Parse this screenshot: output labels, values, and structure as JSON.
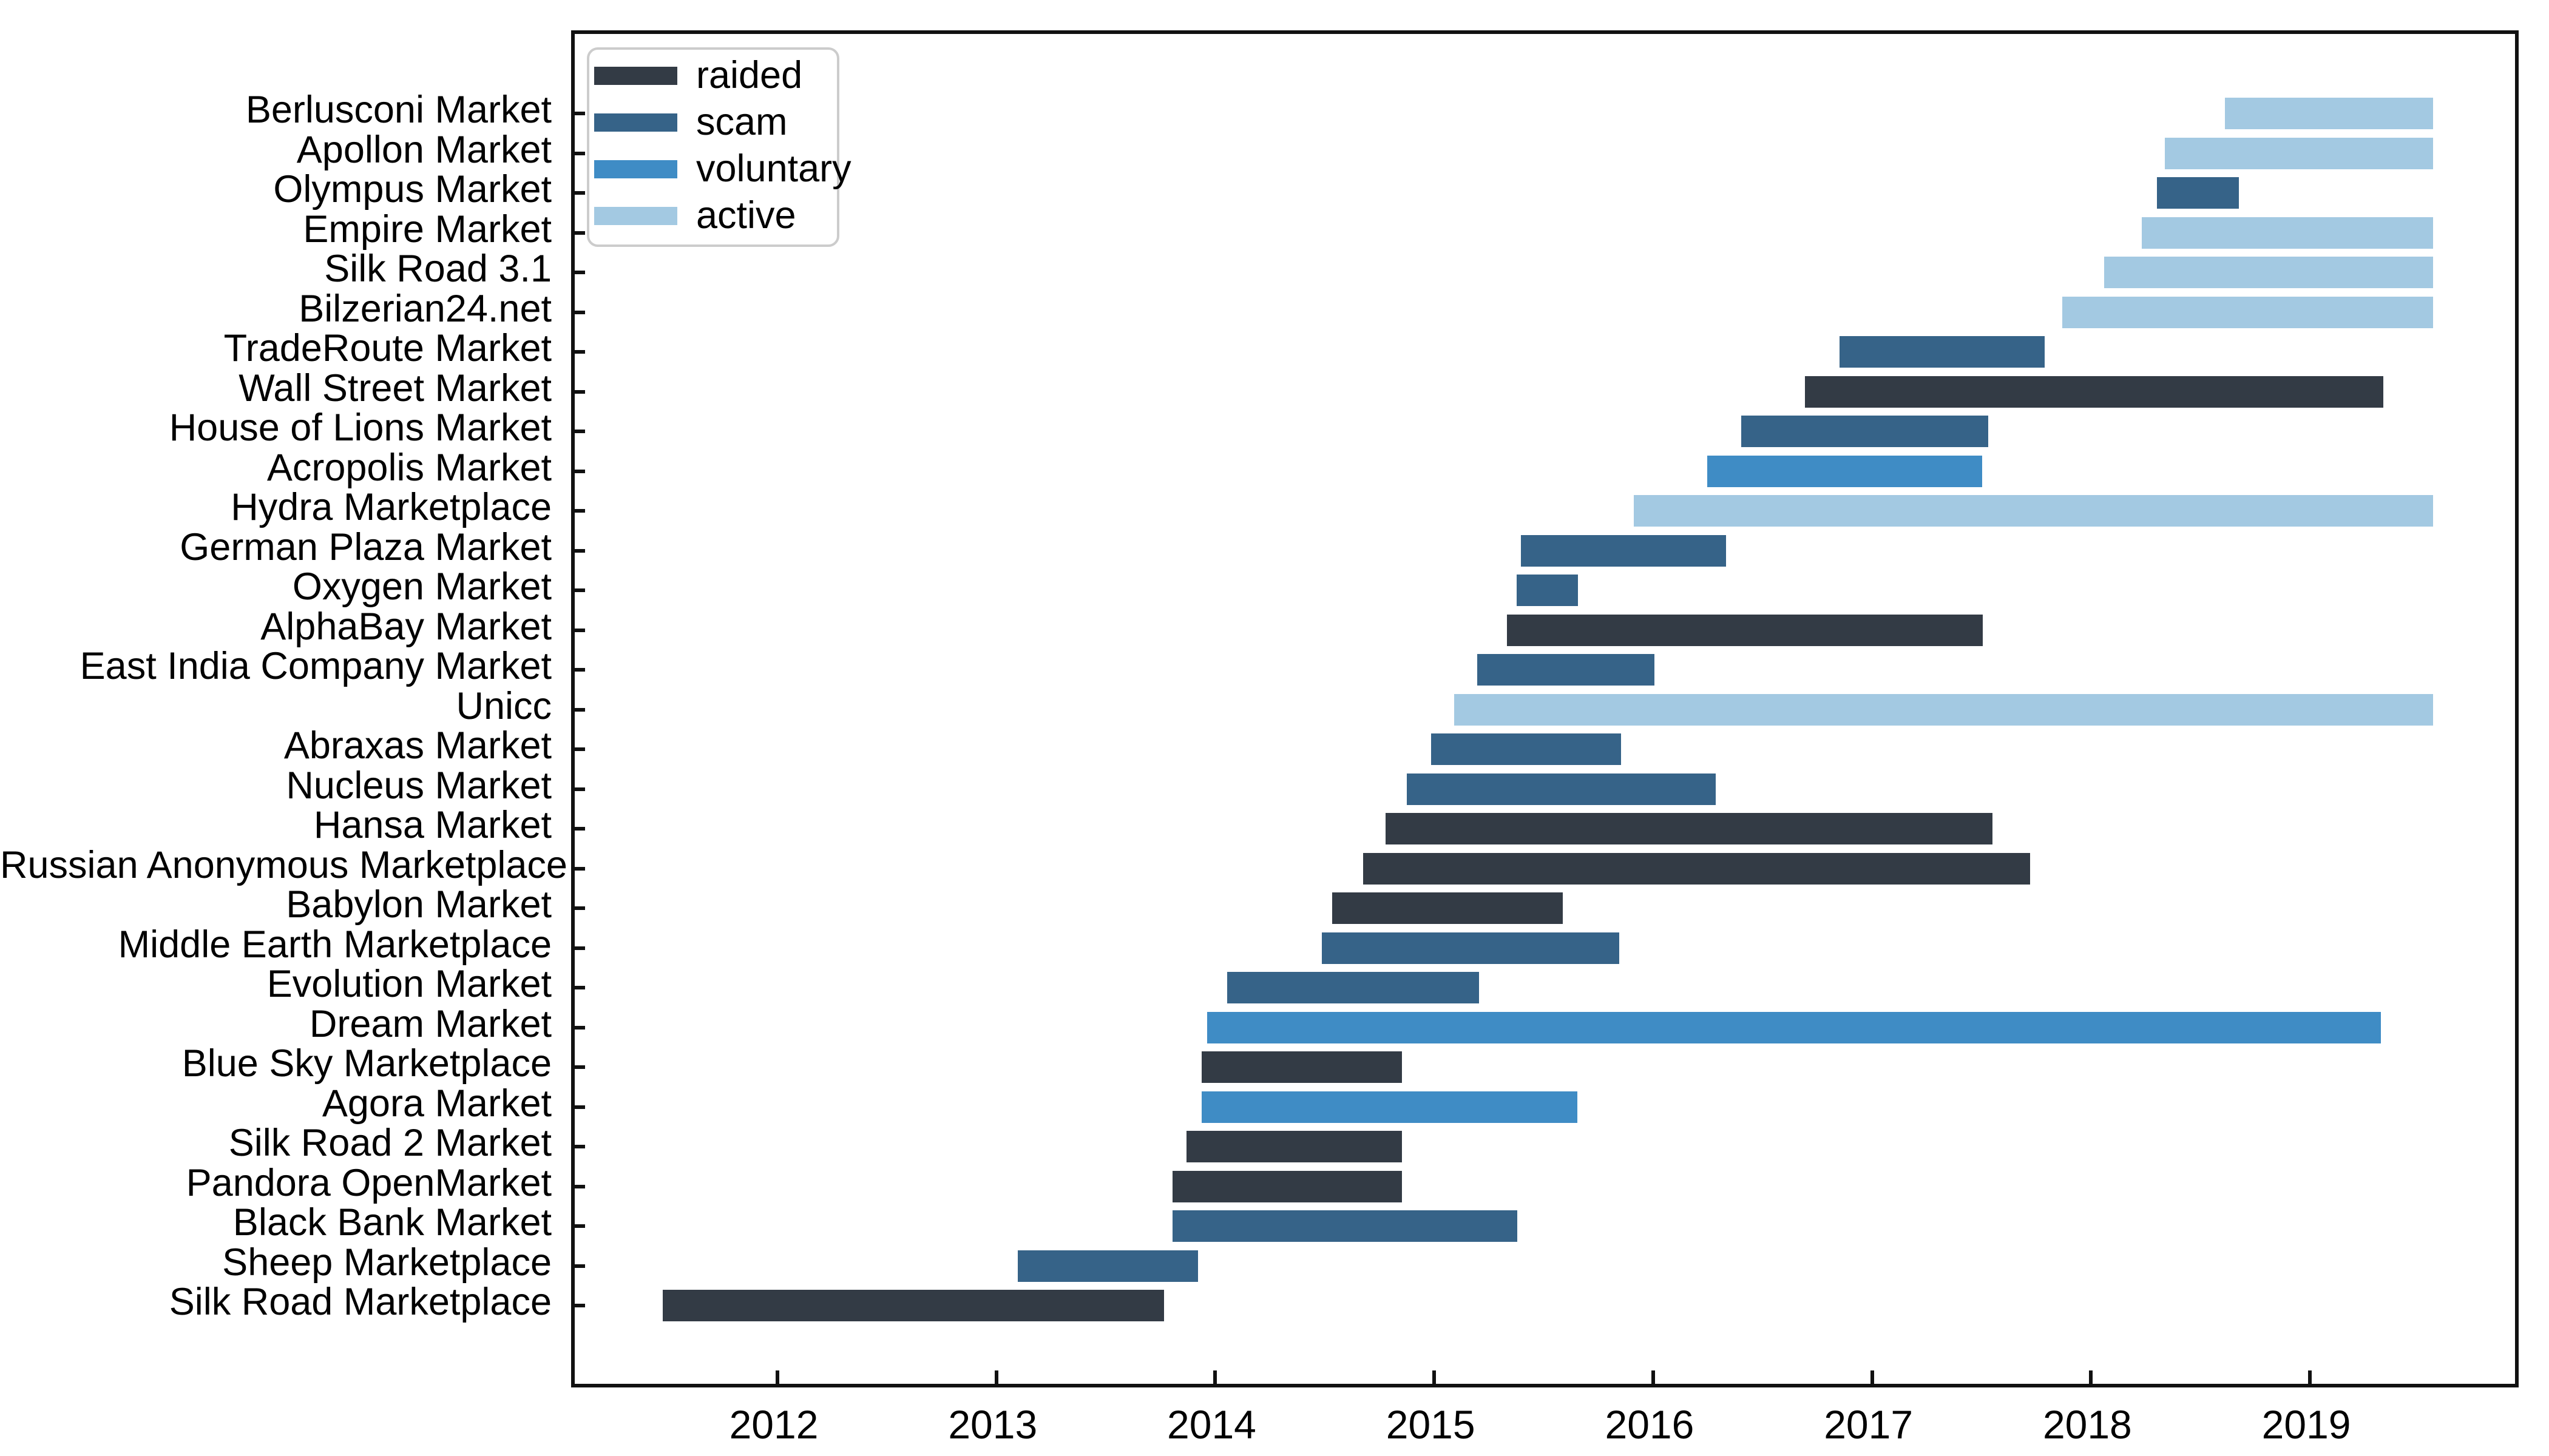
{
  "figure": {
    "background": "#FFFFFF",
    "text_color": "#000000",
    "axis_color": "#111111"
  },
  "chart_data": {
    "type": "gantt",
    "title": "",
    "xlabel": "",
    "ylabel": "",
    "grid": false,
    "x_axis": {
      "range": [
        2011.074,
        2019.97
      ],
      "ticks": [
        "2012",
        "2013",
        "2014",
        "2015",
        "2016",
        "2017",
        "2018",
        "2019"
      ],
      "tick_values": [
        2012,
        2013,
        2014,
        2015,
        2016,
        2017,
        2018,
        2019
      ]
    },
    "legend": {
      "position": "upper-left",
      "entries": [
        {
          "label": "raided",
          "color": "#333B45"
        },
        {
          "label": "scam",
          "color": "#366388"
        },
        {
          "label": "voluntary",
          "color": "#3F8CC5"
        },
        {
          "label": "active",
          "color": "#A3C9E2"
        }
      ]
    },
    "status_colors": {
      "raided": "#333B45",
      "scam": "#366388",
      "voluntary": "#3F8CC5",
      "active": "#A3C9E2"
    },
    "present_year": 2019.562,
    "markets": [
      {
        "name": "Berlusconi Market",
        "status": "active",
        "start": 2018.611,
        "end": 2019.562
      },
      {
        "name": "Apollon Market",
        "status": "active",
        "start": 2018.337,
        "end": 2019.562
      },
      {
        "name": "Olympus Market",
        "status": "scam",
        "start": 2018.301,
        "end": 2018.676
      },
      {
        "name": "Empire Market",
        "status": "active",
        "start": 2018.231,
        "end": 2019.562
      },
      {
        "name": "Silk Road 3.1",
        "status": "active",
        "start": 2018.059,
        "end": 2019.562
      },
      {
        "name": "Bilzerian24.net",
        "status": "active",
        "start": 2017.868,
        "end": 2019.562
      },
      {
        "name": "TradeRoute Market",
        "status": "scam",
        "start": 2016.85,
        "end": 2017.787
      },
      {
        "name": "Wall Street Market",
        "status": "raided",
        "start": 2016.693,
        "end": 2019.334
      },
      {
        "name": "House of Lions Market",
        "status": "scam",
        "start": 2016.403,
        "end": 2017.53
      },
      {
        "name": "Acropolis Market",
        "status": "voluntary",
        "start": 2016.248,
        "end": 2017.502
      },
      {
        "name": "Hydra Marketplace",
        "status": "active",
        "start": 2015.912,
        "end": 2019.562
      },
      {
        "name": "German Plaza Market",
        "status": "scam",
        "start": 2015.397,
        "end": 2016.334
      },
      {
        "name": "Oxygen Market",
        "status": "scam",
        "start": 2015.377,
        "end": 2015.657
      },
      {
        "name": "AlphaBay Market",
        "status": "raided",
        "start": 2015.331,
        "end": 2017.505
      },
      {
        "name": "East India Company Market",
        "status": "scam",
        "start": 2015.197,
        "end": 2016.007
      },
      {
        "name": "Unicc",
        "status": "active",
        "start": 2015.091,
        "end": 2019.562
      },
      {
        "name": "Abraxas Market",
        "status": "scam",
        "start": 2014.986,
        "end": 2015.852
      },
      {
        "name": "Nucleus Market",
        "status": "scam",
        "start": 2014.875,
        "end": 2016.285
      },
      {
        "name": "Hansa Market",
        "status": "raided",
        "start": 2014.779,
        "end": 2017.551
      },
      {
        "name": "Russian Anonymous Marketplace",
        "status": "raided",
        "start": 2014.674,
        "end": 2017.721
      },
      {
        "name": "Babylon Market",
        "status": "raided",
        "start": 2014.533,
        "end": 2015.586
      },
      {
        "name": "Middle Earth Marketplace",
        "status": "scam",
        "start": 2014.487,
        "end": 2015.844
      },
      {
        "name": "Evolution Market",
        "status": "scam",
        "start": 2014.055,
        "end": 2015.204
      },
      {
        "name": "Dream Market",
        "status": "voluntary",
        "start": 2013.963,
        "end": 2019.324
      },
      {
        "name": "Blue Sky Marketplace",
        "status": "raided",
        "start": 2013.938,
        "end": 2014.853
      },
      {
        "name": "Agora Market",
        "status": "voluntary",
        "start": 2013.938,
        "end": 2015.655
      },
      {
        "name": "Silk Road 2 Market",
        "status": "raided",
        "start": 2013.869,
        "end": 2014.853
      },
      {
        "name": "Pandora OpenMarket",
        "status": "raided",
        "start": 2013.805,
        "end": 2014.853
      },
      {
        "name": "Black Bank Market",
        "status": "scam",
        "start": 2013.805,
        "end": 2015.378
      },
      {
        "name": "Sheep Marketplace",
        "status": "scam",
        "start": 2013.097,
        "end": 2013.92
      },
      {
        "name": "Silk Road Marketplace",
        "status": "raided",
        "start": 2011.475,
        "end": 2013.765
      }
    ]
  }
}
